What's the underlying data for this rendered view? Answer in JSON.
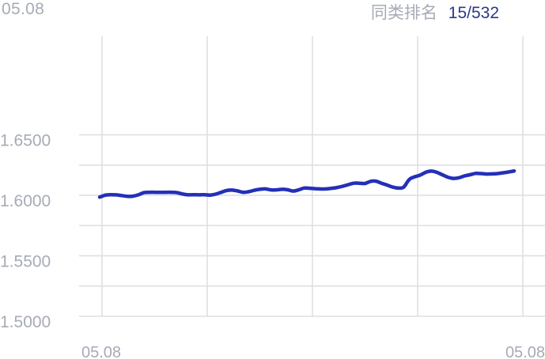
{
  "header": {
    "date": "05.08",
    "rank_label": "同类排名",
    "rank_value": "15/532"
  },
  "chart_data": {
    "type": "line",
    "title": "",
    "xlabel": "",
    "ylabel": "",
    "ylim": [
      1.5,
      1.66
    ],
    "y_ticks": [
      "1.6500",
      "1.6000",
      "1.5500",
      "1.5000"
    ],
    "x_ticks": [
      "05.08",
      "05.08"
    ],
    "grid": true,
    "line_color": "#2430b8",
    "series": [
      {
        "values": [
          1.5985,
          1.6001,
          1.6005,
          1.6004,
          1.5998,
          1.5992,
          1.5993,
          1.6004,
          1.6022,
          1.6025,
          1.6025,
          1.6025,
          1.6025,
          1.6025,
          1.6022,
          1.6011,
          1.6004,
          1.6005,
          1.6004,
          1.6005,
          1.6002,
          1.601,
          1.6025,
          1.604,
          1.6043,
          1.6035,
          1.6025,
          1.603,
          1.6042,
          1.605,
          1.6053,
          1.6045,
          1.6045,
          1.605,
          1.6046,
          1.6035,
          1.6045,
          1.606,
          1.6058,
          1.6055,
          1.6052,
          1.6053,
          1.6058,
          1.6065,
          1.6075,
          1.6088,
          1.61,
          1.61,
          1.6098,
          1.6115,
          1.6117,
          1.61,
          1.6085,
          1.6068,
          1.606,
          1.6067,
          1.613,
          1.6153,
          1.6167,
          1.619,
          1.62,
          1.619,
          1.617,
          1.615,
          1.614,
          1.6145,
          1.616,
          1.617,
          1.6181,
          1.618,
          1.6176,
          1.6177,
          1.618,
          1.6186,
          1.6193,
          1.6201
        ]
      }
    ]
  }
}
